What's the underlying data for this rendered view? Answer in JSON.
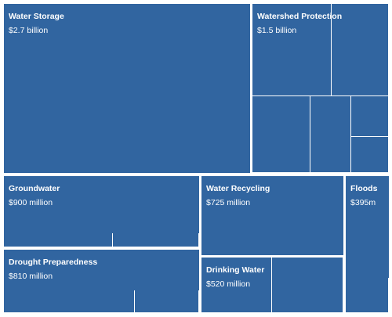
{
  "colors": {
    "tile": "#3165a0",
    "gap": "#ffffff"
  },
  "chart_data": {
    "type": "treemap",
    "title": "",
    "unit": "USD",
    "items": [
      {
        "name": "Water Storage",
        "label": "$2.7 billion",
        "value": 2700
      },
      {
        "name": "Watershed Protection",
        "label": "$1.5 billion",
        "value": 1500
      },
      {
        "name": "Groundwater",
        "label": "$900 million",
        "value": 900
      },
      {
        "name": "Drought Preparedness",
        "label": "$810 million",
        "value": 810
      },
      {
        "name": "Water Recycling",
        "label": "$725 million",
        "value": 725
      },
      {
        "name": "Drinking Water",
        "label": "$520 million",
        "value": 520
      },
      {
        "name": "Floods",
        "label": "$395m",
        "value": 395
      }
    ]
  }
}
